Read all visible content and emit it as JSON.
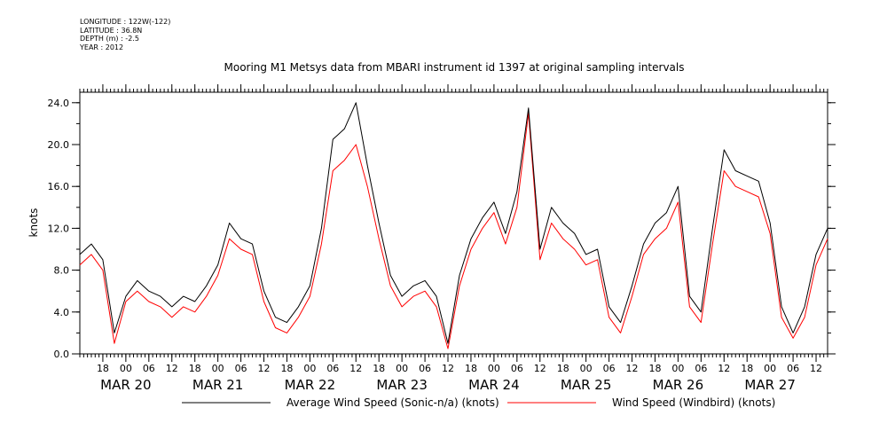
{
  "meta": {
    "longitude": "LONGITUDE : 122W(-122)",
    "latitude": "LATITUDE : 36.8N",
    "depth": "DEPTH (m) : -2.5",
    "year": "YEAR : 2012"
  },
  "chart_data": {
    "type": "line",
    "title": "Mooring M1 Metsys data from MBARI instrument id 1397 at original sampling intervals",
    "xlabel": "",
    "ylabel": "knots",
    "xlim": [
      "2012-03-19T12:00",
      "2012-03-27T15:00"
    ],
    "ylim": [
      0,
      25
    ],
    "yticks": [
      0.0,
      4.0,
      8.0,
      12.0,
      16.0,
      20.0,
      24.0
    ],
    "ytick_labels": [
      "0.0",
      "4.0",
      "8.0",
      "12.0",
      "16.0",
      "20.0",
      "24.0"
    ],
    "hour_ticks": [
      {
        "t": "2012-03-19T18:00",
        "label": "18"
      },
      {
        "t": "2012-03-20T00:00",
        "label": "00"
      },
      {
        "t": "2012-03-20T06:00",
        "label": "06"
      },
      {
        "t": "2012-03-20T12:00",
        "label": "12"
      },
      {
        "t": "2012-03-20T18:00",
        "label": "18"
      },
      {
        "t": "2012-03-21T00:00",
        "label": "00"
      },
      {
        "t": "2012-03-21T06:00",
        "label": "06"
      },
      {
        "t": "2012-03-21T12:00",
        "label": "12"
      },
      {
        "t": "2012-03-21T18:00",
        "label": "18"
      },
      {
        "t": "2012-03-22T00:00",
        "label": "00"
      },
      {
        "t": "2012-03-22T06:00",
        "label": "06"
      },
      {
        "t": "2012-03-22T12:00",
        "label": "12"
      },
      {
        "t": "2012-03-22T18:00",
        "label": "18"
      },
      {
        "t": "2012-03-23T00:00",
        "label": "00"
      },
      {
        "t": "2012-03-23T06:00",
        "label": "06"
      },
      {
        "t": "2012-03-23T12:00",
        "label": "12"
      },
      {
        "t": "2012-03-23T18:00",
        "label": "18"
      },
      {
        "t": "2012-03-24T00:00",
        "label": "00"
      },
      {
        "t": "2012-03-24T06:00",
        "label": "06"
      },
      {
        "t": "2012-03-24T12:00",
        "label": "12"
      },
      {
        "t": "2012-03-24T18:00",
        "label": "18"
      },
      {
        "t": "2012-03-25T00:00",
        "label": "00"
      },
      {
        "t": "2012-03-25T06:00",
        "label": "06"
      },
      {
        "t": "2012-03-25T12:00",
        "label": "12"
      },
      {
        "t": "2012-03-25T18:00",
        "label": "18"
      },
      {
        "t": "2012-03-26T00:00",
        "label": "00"
      },
      {
        "t": "2012-03-26T06:00",
        "label": "06"
      },
      {
        "t": "2012-03-26T12:00",
        "label": "12"
      },
      {
        "t": "2012-03-26T18:00",
        "label": "18"
      },
      {
        "t": "2012-03-27T00:00",
        "label": "00"
      },
      {
        "t": "2012-03-27T06:00",
        "label": "06"
      },
      {
        "t": "2012-03-27T12:00",
        "label": "12"
      }
    ],
    "day_labels": [
      {
        "t": "2012-03-20T00:00",
        "label": "MAR 20"
      },
      {
        "t": "2012-03-21T00:00",
        "label": "MAR 21"
      },
      {
        "t": "2012-03-22T00:00",
        "label": "MAR 22"
      },
      {
        "t": "2012-03-23T00:00",
        "label": "MAR 23"
      },
      {
        "t": "2012-03-24T00:00",
        "label": "MAR 24"
      },
      {
        "t": "2012-03-25T00:00",
        "label": "MAR 25"
      },
      {
        "t": "2012-03-26T00:00",
        "label": "MAR 26"
      },
      {
        "t": "2012-03-27T00:00",
        "label": "MAR 27"
      }
    ],
    "legend_position": "bottom",
    "series": [
      {
        "name": "Average Wind Speed (Sonic-n/a) (knots)",
        "color": "#000000",
        "x": [
          "2012-03-19T12:00",
          "2012-03-19T15:00",
          "2012-03-19T18:00",
          "2012-03-19T21:00",
          "2012-03-20T00:00",
          "2012-03-20T03:00",
          "2012-03-20T06:00",
          "2012-03-20T09:00",
          "2012-03-20T12:00",
          "2012-03-20T15:00",
          "2012-03-20T18:00",
          "2012-03-20T21:00",
          "2012-03-21T00:00",
          "2012-03-21T03:00",
          "2012-03-21T06:00",
          "2012-03-21T09:00",
          "2012-03-21T12:00",
          "2012-03-21T15:00",
          "2012-03-21T18:00",
          "2012-03-21T21:00",
          "2012-03-22T00:00",
          "2012-03-22T03:00",
          "2012-03-22T06:00",
          "2012-03-22T09:00",
          "2012-03-22T12:00",
          "2012-03-22T15:00",
          "2012-03-22T18:00",
          "2012-03-22T21:00",
          "2012-03-23T00:00",
          "2012-03-23T03:00",
          "2012-03-23T06:00",
          "2012-03-23T09:00",
          "2012-03-23T12:00",
          "2012-03-23T15:00",
          "2012-03-23T18:00",
          "2012-03-23T21:00",
          "2012-03-24T00:00",
          "2012-03-24T03:00",
          "2012-03-24T06:00",
          "2012-03-24T09:00",
          "2012-03-24T12:00",
          "2012-03-24T15:00",
          "2012-03-24T18:00",
          "2012-03-24T21:00",
          "2012-03-25T00:00",
          "2012-03-25T03:00",
          "2012-03-25T06:00",
          "2012-03-25T09:00",
          "2012-03-25T12:00",
          "2012-03-25T15:00",
          "2012-03-25T18:00",
          "2012-03-25T21:00",
          "2012-03-26T00:00",
          "2012-03-26T03:00",
          "2012-03-26T06:00",
          "2012-03-26T09:00",
          "2012-03-26T12:00",
          "2012-03-26T15:00",
          "2012-03-26T18:00",
          "2012-03-26T21:00",
          "2012-03-27T00:00",
          "2012-03-27T03:00",
          "2012-03-27T06:00",
          "2012-03-27T09:00",
          "2012-03-27T12:00",
          "2012-03-27T15:00"
        ],
        "y": [
          9.5,
          10.5,
          9.0,
          2.0,
          5.5,
          7.0,
          6.0,
          5.5,
          4.5,
          5.5,
          5.0,
          6.5,
          8.5,
          12.5,
          11.0,
          10.5,
          6.0,
          3.5,
          3.0,
          4.5,
          6.5,
          12.0,
          20.5,
          21.5,
          24.0,
          18.0,
          12.5,
          7.5,
          5.5,
          6.5,
          7.0,
          5.5,
          1.0,
          7.5,
          11.0,
          13.0,
          14.5,
          11.5,
          15.5,
          23.5,
          10.0,
          14.0,
          12.5,
          11.5,
          9.5,
          10.0,
          4.5,
          3.0,
          6.5,
          10.5,
          12.5,
          13.5,
          16.0,
          5.5,
          4.0,
          12.0,
          19.5,
          17.5,
          17.0,
          16.5,
          12.5,
          4.5,
          2.0,
          4.5,
          9.5,
          12.0
        ]
      },
      {
        "name": "Wind Speed (Windbird) (knots)",
        "color": "#ff0000",
        "x": [
          "2012-03-19T12:00",
          "2012-03-19T15:00",
          "2012-03-19T18:00",
          "2012-03-19T21:00",
          "2012-03-20T00:00",
          "2012-03-20T03:00",
          "2012-03-20T06:00",
          "2012-03-20T09:00",
          "2012-03-20T12:00",
          "2012-03-20T15:00",
          "2012-03-20T18:00",
          "2012-03-20T21:00",
          "2012-03-21T00:00",
          "2012-03-21T03:00",
          "2012-03-21T06:00",
          "2012-03-21T09:00",
          "2012-03-21T12:00",
          "2012-03-21T15:00",
          "2012-03-21T18:00",
          "2012-03-21T21:00",
          "2012-03-22T00:00",
          "2012-03-22T03:00",
          "2012-03-22T06:00",
          "2012-03-22T09:00",
          "2012-03-22T12:00",
          "2012-03-22T15:00",
          "2012-03-22T18:00",
          "2012-03-22T21:00",
          "2012-03-23T00:00",
          "2012-03-23T03:00",
          "2012-03-23T06:00",
          "2012-03-23T09:00",
          "2012-03-23T12:00",
          "2012-03-23T15:00",
          "2012-03-23T18:00",
          "2012-03-23T21:00",
          "2012-03-24T00:00",
          "2012-03-24T03:00",
          "2012-03-24T06:00",
          "2012-03-24T09:00",
          "2012-03-24T12:00",
          "2012-03-24T15:00",
          "2012-03-24T18:00",
          "2012-03-24T21:00",
          "2012-03-25T00:00",
          "2012-03-25T03:00",
          "2012-03-25T06:00",
          "2012-03-25T09:00",
          "2012-03-25T12:00",
          "2012-03-25T15:00",
          "2012-03-25T18:00",
          "2012-03-25T21:00",
          "2012-03-26T00:00",
          "2012-03-26T03:00",
          "2012-03-26T06:00",
          "2012-03-26T09:00",
          "2012-03-26T12:00",
          "2012-03-26T15:00",
          "2012-03-26T18:00",
          "2012-03-26T21:00",
          "2012-03-27T00:00",
          "2012-03-27T03:00",
          "2012-03-27T06:00",
          "2012-03-27T09:00",
          "2012-03-27T12:00",
          "2012-03-27T15:00"
        ],
        "y": [
          8.5,
          9.5,
          8.0,
          1.0,
          5.0,
          6.0,
          5.0,
          4.5,
          3.5,
          4.5,
          4.0,
          5.5,
          7.5,
          11.0,
          10.0,
          9.5,
          5.0,
          2.5,
          2.0,
          3.5,
          5.5,
          10.5,
          17.5,
          18.5,
          20.0,
          16.0,
          11.0,
          6.5,
          4.5,
          5.5,
          6.0,
          4.5,
          0.5,
          6.5,
          10.0,
          12.0,
          13.5,
          10.5,
          14.0,
          23.0,
          9.0,
          12.5,
          11.0,
          10.0,
          8.5,
          9.0,
          3.5,
          2.0,
          5.5,
          9.5,
          11.0,
          12.0,
          14.5,
          4.5,
          3.0,
          10.5,
          17.5,
          16.0,
          15.5,
          15.0,
          11.5,
          3.5,
          1.5,
          3.5,
          8.5,
          11.0
        ]
      }
    ]
  }
}
